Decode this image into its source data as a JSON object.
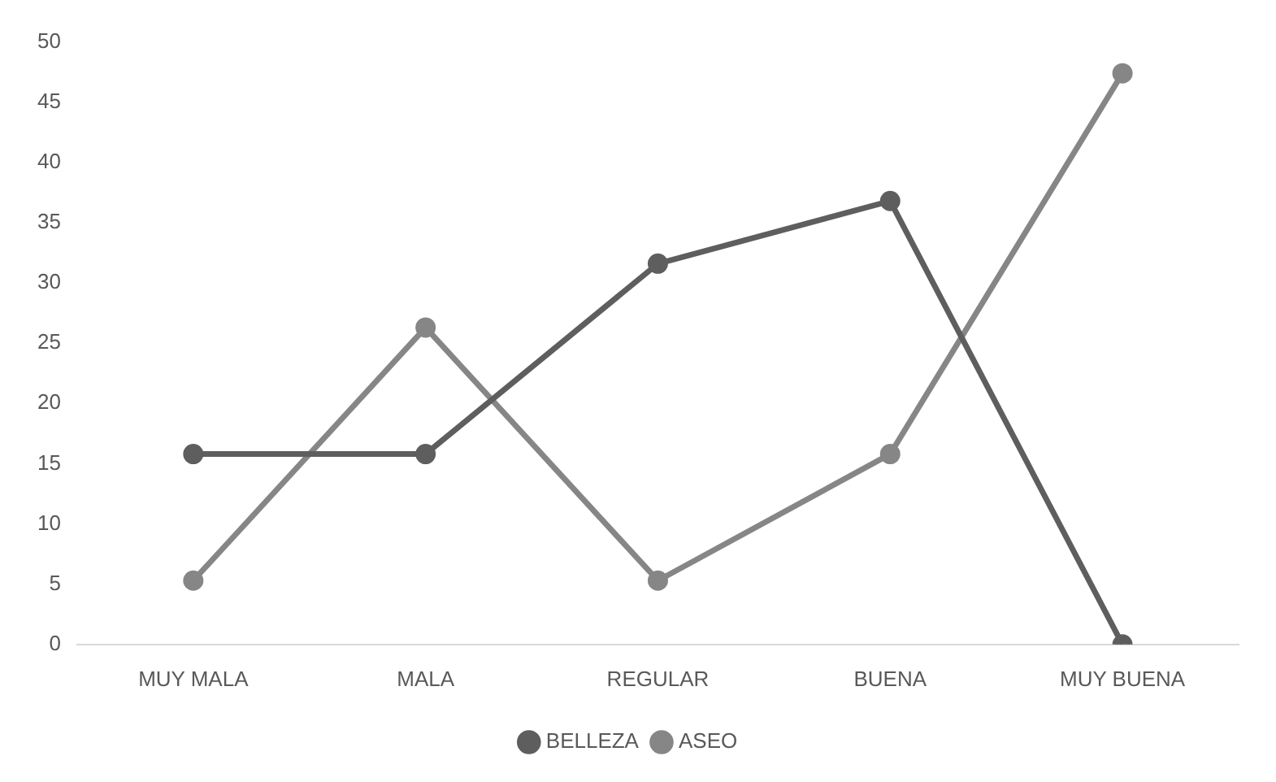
{
  "chart_data": {
    "type": "line",
    "categories": [
      "MUY MALA",
      "MALA",
      "REGULAR",
      "BUENA",
      "MUY BUENA"
    ],
    "series": [
      {
        "name": "BELLEZA",
        "color": "#5e5e5e",
        "values": [
          15.8,
          15.8,
          31.6,
          36.8,
          0
        ]
      },
      {
        "name": "ASEO",
        "color": "#868686",
        "values": [
          5.3,
          26.3,
          5.3,
          15.8,
          47.4
        ]
      }
    ],
    "ylim": [
      0,
      50
    ],
    "yticks": [
      0,
      5,
      10,
      15,
      20,
      25,
      30,
      35,
      40,
      45,
      50
    ],
    "grid": false,
    "legend": "bottom",
    "marker": "circle",
    "line_style": "solid"
  }
}
